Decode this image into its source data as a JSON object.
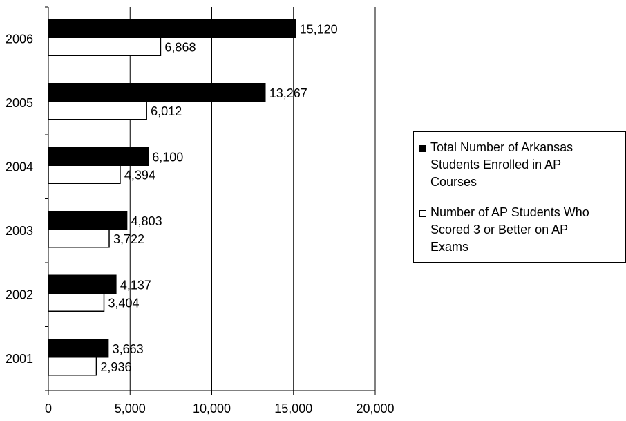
{
  "chart_data": {
    "type": "bar",
    "orientation": "horizontal",
    "title": "",
    "xlabel": "",
    "ylabel": "",
    "categories": [
      "2001",
      "2002",
      "2003",
      "2004",
      "2005",
      "2006"
    ],
    "series": [
      {
        "name": "Total Number of Arkansas Students Enrolled in AP Courses",
        "color": "#000000",
        "values": [
          3663,
          4137,
          4803,
          6100,
          13267,
          15120
        ],
        "labels": [
          "3,663",
          "4,137",
          "4,803",
          "6,100",
          "13,267",
          "15,120"
        ]
      },
      {
        "name": "Number of AP Students Who Scored 3 or Better on AP Exams",
        "color": "#ffffff",
        "values": [
          2936,
          3404,
          3722,
          4394,
          6012,
          6868
        ],
        "labels": [
          "2,936",
          "3,404",
          "3,722",
          "4,394",
          "6,012",
          "6,868"
        ]
      }
    ],
    "xlim": [
      0,
      20000
    ],
    "x_ticks": [
      0,
      5000,
      10000,
      15000,
      20000
    ],
    "x_tick_labels": [
      "0",
      "5,000",
      "10,000",
      "15,000",
      "20,000"
    ],
    "grid": "vertical",
    "legend_position": "right"
  },
  "legend": {
    "items": [
      {
        "lines": [
          "Total Number of Arkansas",
          "Students Enrolled in AP",
          "Courses"
        ]
      },
      {
        "lines": [
          "Number of AP Students Who",
          "Scored 3 or Better on AP",
          "Exams"
        ]
      }
    ]
  }
}
